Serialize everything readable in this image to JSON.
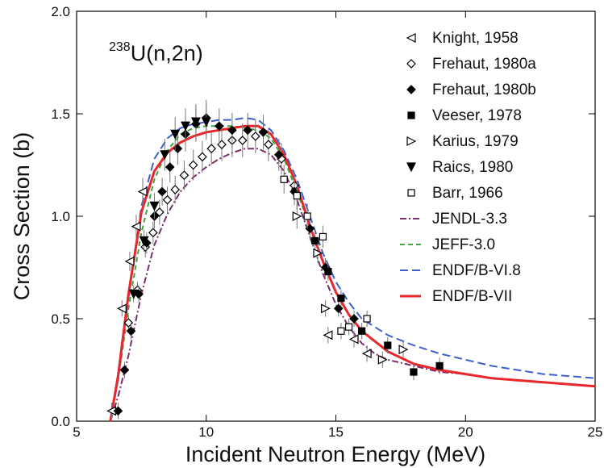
{
  "chart_data": {
    "type": "line",
    "annotation": {
      "mass_number": "238",
      "reaction": "U(n,2n)"
    },
    "xlabel": "Incident Neutron Energy (MeV)",
    "ylabel": "Cross Section (b)",
    "xlim": [
      5,
      25
    ],
    "ylim": [
      0,
      2.0
    ],
    "x_ticks": [
      "5",
      "10",
      "15",
      "20",
      "25"
    ],
    "y_ticks": [
      "0.0",
      "0.5",
      "1.0",
      "1.5",
      "2.0"
    ],
    "grid": false,
    "legend_position": "top-right",
    "experimental": [
      {
        "name": "Knight, 1958",
        "marker": "triangle-left-open",
        "points": [
          [
            6.35,
            0.05
          ],
          [
            6.75,
            0.55
          ],
          [
            7.05,
            0.78
          ],
          [
            7.3,
            0.95
          ],
          [
            7.55,
            1.12
          ],
          [
            14.7,
            0.42
          ],
          [
            15.7,
            0.4
          ],
          [
            16.2,
            0.33
          ]
        ]
      },
      {
        "name": "Frehaut, 1980a",
        "marker": "diamond-open",
        "points": [
          [
            7.0,
            0.48
          ],
          [
            7.35,
            0.64
          ],
          [
            7.65,
            0.85
          ],
          [
            7.95,
            0.92
          ],
          [
            8.2,
            1.02
          ],
          [
            8.5,
            1.08
          ],
          [
            8.8,
            1.13
          ],
          [
            9.15,
            1.2
          ],
          [
            9.5,
            1.25
          ],
          [
            9.85,
            1.29
          ],
          [
            10.2,
            1.33
          ],
          [
            10.6,
            1.35
          ],
          [
            11.0,
            1.37
          ],
          [
            11.4,
            1.37
          ],
          [
            11.9,
            1.39
          ],
          [
            12.4,
            1.35
          ],
          [
            12.9,
            1.28
          ],
          [
            13.4,
            1.15
          ]
        ]
      },
      {
        "name": "Frehaut, 1980b",
        "marker": "diamond-filled",
        "points": [
          [
            6.6,
            0.05
          ],
          [
            6.85,
            0.25
          ],
          [
            7.1,
            0.44
          ],
          [
            7.4,
            0.62
          ],
          [
            7.7,
            0.87
          ],
          [
            8.0,
            1.0
          ],
          [
            8.3,
            1.12
          ],
          [
            8.6,
            1.24
          ],
          [
            8.9,
            1.33
          ],
          [
            9.2,
            1.4
          ],
          [
            9.6,
            1.45
          ],
          [
            10.0,
            1.48
          ],
          [
            10.5,
            1.44
          ],
          [
            11.0,
            1.42
          ],
          [
            11.6,
            1.42
          ],
          [
            12.2,
            1.41
          ],
          [
            12.8,
            1.3
          ],
          [
            13.4,
            1.12
          ],
          [
            14.0,
            0.94
          ],
          [
            14.6,
            0.75
          ],
          [
            15.1,
            0.55
          ],
          [
            15.7,
            0.5
          ]
        ]
      },
      {
        "name": "Veeser, 1978",
        "marker": "square-filled",
        "points": [
          [
            14.2,
            0.88
          ],
          [
            14.7,
            0.73
          ],
          [
            15.2,
            0.6
          ],
          [
            16.0,
            0.44
          ],
          [
            17.0,
            0.37
          ],
          [
            18.0,
            0.24
          ],
          [
            19.0,
            0.27
          ]
        ]
      },
      {
        "name": "Karius, 1979",
        "marker": "triangle-right-open",
        "points": [
          [
            13.5,
            1.0
          ],
          [
            14.3,
            0.82
          ],
          [
            14.6,
            0.55
          ],
          [
            16.8,
            0.3
          ],
          [
            17.6,
            0.35
          ]
        ]
      },
      {
        "name": "Raics, 1980",
        "marker": "triangle-down-filled",
        "points": [
          [
            7.2,
            0.62
          ],
          [
            7.6,
            0.88
          ],
          [
            8.0,
            1.05
          ],
          [
            8.4,
            1.3
          ],
          [
            8.8,
            1.4
          ],
          [
            9.2,
            1.44
          ],
          [
            9.6,
            1.46
          ],
          [
            10.0,
            1.46
          ]
        ]
      },
      {
        "name": "Barr, 1966",
        "marker": "square-open",
        "points": [
          [
            13.0,
            1.18
          ],
          [
            13.5,
            1.1
          ],
          [
            13.9,
            1.0
          ],
          [
            14.5,
            0.9
          ],
          [
            15.2,
            0.44
          ],
          [
            15.5,
            0.46
          ],
          [
            16.2,
            0.5
          ]
        ]
      }
    ],
    "evaluations": [
      {
        "name": "JENDL-3.3",
        "color": "#7b2d6a",
        "dash": "dashdot",
        "x": [
          6.3,
          6.6,
          7.0,
          7.5,
          8.0,
          8.5,
          9.0,
          9.5,
          10.0,
          10.5,
          11.0,
          11.5,
          12.0,
          12.5,
          13.0,
          13.5,
          14.0,
          14.5,
          15.0,
          15.5,
          16.0,
          16.5,
          17.0,
          18.0,
          19.0,
          20.0
        ],
        "y": [
          0.0,
          0.12,
          0.32,
          0.62,
          0.86,
          1.01,
          1.12,
          1.19,
          1.24,
          1.28,
          1.31,
          1.33,
          1.33,
          1.3,
          1.22,
          1.08,
          0.9,
          0.72,
          0.57,
          0.46,
          0.38,
          0.33,
          0.3,
          0.27,
          0.24,
          0.23
        ]
      },
      {
        "name": "JEFF-3.0",
        "color": "#3fa63f",
        "dash": "dash",
        "x": [
          6.3,
          6.6,
          7.0,
          7.5,
          8.0,
          8.5,
          9.0,
          9.5,
          10.0,
          10.5,
          11.0,
          11.5,
          12.0,
          12.5,
          13.0,
          13.5,
          14.0,
          14.5
        ],
        "y": [
          0.0,
          0.2,
          0.55,
          0.92,
          1.18,
          1.32,
          1.4,
          1.43,
          1.44,
          1.44,
          1.44,
          1.43,
          1.42,
          1.38,
          1.28,
          1.12,
          0.95,
          0.78
        ]
      },
      {
        "name": "ENDF/B-VI.8",
        "color": "#3c5fcd",
        "dash": "longdash",
        "x": [
          6.3,
          6.6,
          7.0,
          7.5,
          8.0,
          8.5,
          9.0,
          9.5,
          10.0,
          10.5,
          11.0,
          11.5,
          12.0,
          12.5,
          13.0,
          13.5,
          14.0,
          14.5,
          15.0,
          15.5,
          16.0,
          17.0,
          18.0,
          19.0,
          20.0,
          21.0,
          22.0,
          23.0,
          24.0,
          25.0
        ],
        "y": [
          0.0,
          0.2,
          0.6,
          1.05,
          1.28,
          1.38,
          1.43,
          1.45,
          1.46,
          1.47,
          1.47,
          1.48,
          1.47,
          1.42,
          1.32,
          1.18,
          1.0,
          0.82,
          0.68,
          0.58,
          0.5,
          0.42,
          0.37,
          0.33,
          0.3,
          0.27,
          0.25,
          0.23,
          0.22,
          0.21
        ]
      },
      {
        "name": "ENDF/B-VII",
        "color": "#e8262b",
        "dash": "solid",
        "x": [
          6.3,
          6.6,
          7.0,
          7.5,
          8.0,
          8.5,
          9.0,
          9.5,
          10.0,
          10.5,
          11.0,
          11.5,
          12.0,
          12.5,
          13.0,
          13.5,
          14.0,
          14.5,
          15.0,
          15.5,
          16.0,
          17.0,
          18.0,
          19.0,
          20.0,
          21.0,
          22.0,
          23.0,
          24.0,
          25.0
        ],
        "y": [
          0.0,
          0.22,
          0.62,
          1.02,
          1.22,
          1.31,
          1.36,
          1.39,
          1.41,
          1.42,
          1.43,
          1.44,
          1.44,
          1.4,
          1.3,
          1.15,
          0.95,
          0.78,
          0.63,
          0.52,
          0.44,
          0.34,
          0.28,
          0.25,
          0.23,
          0.21,
          0.2,
          0.19,
          0.18,
          0.17
        ]
      }
    ]
  }
}
